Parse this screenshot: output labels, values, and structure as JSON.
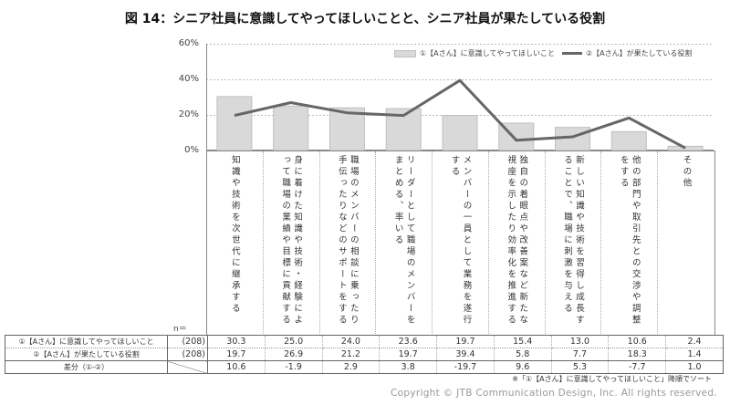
{
  "title": "図 14：シニア社員に意識してやってほしいことと、シニア社員が果たしている役割",
  "legend": {
    "bar_label": "①【Aさん】に意識してやってほしいこと",
    "line_label": "②【Aさん】が果たしている役割"
  },
  "yticks": [
    "60%",
    "40%",
    "20%",
    "0%"
  ],
  "n_label": "n＝",
  "table": {
    "rows": [
      {
        "label": "①【Aさん】に意識してやってほしいこと",
        "n": "(208)",
        "values": [
          "30.3",
          "25.0",
          "24.0",
          "23.6",
          "19.7",
          "15.4",
          "13.0",
          "10.6",
          "2.4"
        ]
      },
      {
        "label": "②【Aさん】が果たしている役割",
        "n": "(208)",
        "values": [
          "19.7",
          "26.9",
          "21.2",
          "19.7",
          "39.4",
          "5.8",
          "7.7",
          "18.3",
          "1.4"
        ]
      },
      {
        "label": "差分（①-②）",
        "n": "",
        "values": [
          "10.6",
          "-1.9",
          "2.9",
          "3.8",
          "-19.7",
          "9.6",
          "5.3",
          "-7.7",
          "1.0"
        ]
      }
    ]
  },
  "note": "※「①【Aさん】に意識してやってほしいこと」降順でソート",
  "copyright": "Copyright © JTB Communication Design, Inc. All rights reserved.",
  "colors": {
    "bar_fill": "#d9d9d9",
    "bar_border": "#bfbfbf",
    "line": "#666666",
    "grid": "#bbbbbb"
  },
  "chart_data": {
    "type": "bar",
    "title": "図 14：シニア社員に意識してやってほしいことと、シニア社員が果たしている役割",
    "xlabel": "",
    "ylabel": "",
    "ylim": [
      0,
      60
    ],
    "yticks": [
      0,
      20,
      40,
      60
    ],
    "grid": true,
    "legend_position": "top-right",
    "categories": [
      "知識や技術を次世代に継承する",
      "身に着けた知識や技術・経験によって職場の業績や目標に貢献する",
      "職場のメンバーの相談に乗ったり手伝ったりなどのサポートをする",
      "リーダーとして職場のメンバーをまとめる、率いる",
      "メンバーの一員として業務を遂行する",
      "独自の着眼点や改善案など新たな視座を示したり効率化を推進する",
      "新しい知識や技術を習得し成長することで、職場に刺激を与える",
      "他の部門や取引先との交渉や調整をする",
      "その他"
    ],
    "series": [
      {
        "name": "①【Aさん】に意識してやってほしいこと",
        "type": "bar",
        "values": [
          30.3,
          25.0,
          24.0,
          23.6,
          19.7,
          15.4,
          13.0,
          10.6,
          2.4
        ]
      },
      {
        "name": "②【Aさん】が果たしている役割",
        "type": "line",
        "values": [
          19.7,
          26.9,
          21.2,
          19.7,
          39.4,
          5.8,
          7.7,
          18.3,
          1.4
        ]
      }
    ],
    "difference": {
      "name": "差分（①-②）",
      "values": [
        10.6,
        -1.9,
        2.9,
        3.8,
        -19.7,
        9.6,
        5.3,
        -7.7,
        1.0
      ]
    },
    "n": 208
  }
}
